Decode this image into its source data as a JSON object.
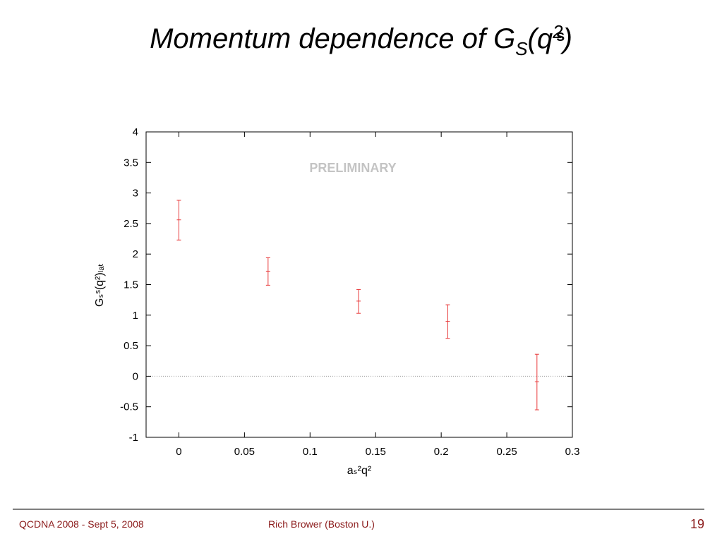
{
  "slide": {
    "title": {
      "text": "Momentum dependence of G",
      "sub": "S",
      "mid": "(q",
      "sup": "2",
      "end": ")",
      "mark": "s"
    },
    "footer": {
      "left": "QCDNA 2008 -  Sept 5, 2008",
      "center": "Rich Brower (Boston U.)",
      "page": "19"
    }
  },
  "chart_data": {
    "type": "scatter",
    "annotation": "PRELIMINARY",
    "xlabel": "aₛ²q²",
    "ylabel": "Gₛˢ(q²)ₗₐₜ",
    "xlim": [
      -0.025,
      0.3
    ],
    "ylim": [
      -1,
      4
    ],
    "x_ticks": [
      "0",
      "0.05",
      "0.1",
      "0.15",
      "0.2",
      "0.25",
      "0.3"
    ],
    "x_tick_values": [
      0,
      0.05,
      0.1,
      0.15,
      0.2,
      0.25,
      0.3
    ],
    "y_ticks": [
      "4",
      "3.5",
      "3",
      "2.5",
      "2",
      "1.5",
      "1",
      "0.5",
      "0",
      "-0.5",
      "-1"
    ],
    "y_tick_values": [
      4,
      3.5,
      3,
      2.5,
      2,
      1.5,
      1,
      0.5,
      0,
      -0.5,
      -1
    ],
    "zero_line": true,
    "grid": false,
    "series": [
      {
        "color": "#e8393a",
        "points": [
          {
            "x": 0.0,
            "y": 2.56,
            "ylow": 2.23,
            "yhigh": 2.88
          },
          {
            "x": 0.068,
            "y": 1.72,
            "ylow": 1.49,
            "yhigh": 1.94
          },
          {
            "x": 0.137,
            "y": 1.23,
            "ylow": 1.03,
            "yhigh": 1.42
          },
          {
            "x": 0.205,
            "y": 0.9,
            "ylow": 0.62,
            "yhigh": 1.17
          },
          {
            "x": 0.273,
            "y": -0.09,
            "ylow": -0.55,
            "yhigh": 0.36
          }
        ]
      }
    ]
  }
}
